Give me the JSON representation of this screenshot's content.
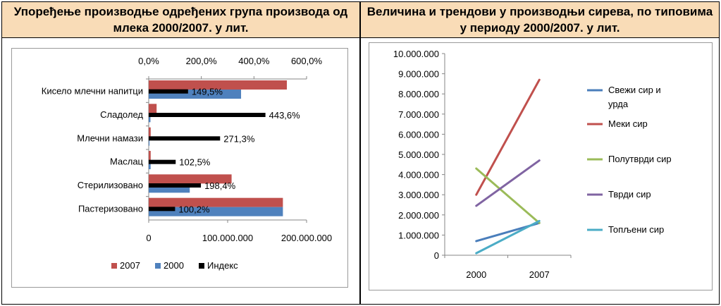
{
  "headers": {
    "left": "Упоређење производње одређених група производа од млека 2000/2007. у лит.",
    "right": "Величина и трендови у производњи сирева, по типовима у периоду 2000/2007. у лит."
  },
  "chart_data": [
    {
      "type": "bar",
      "orientation": "horizontal",
      "categories": [
        "Кисело млечни напитци",
        "Сладолед",
        "Млечни намази",
        "Маслац",
        "Стерилизовано",
        "Пастеризовано"
      ],
      "series": [
        {
          "name": "2007",
          "color": "#c0504d",
          "values": [
            175000000,
            10000000,
            2500000,
            2500000,
            105000000,
            170000000
          ],
          "axis": "bottom"
        },
        {
          "name": "2000",
          "color": "#4f81bd",
          "values": [
            117000000,
            2200000,
            1000000,
            2400000,
            52000000,
            170000000
          ],
          "axis": "bottom"
        },
        {
          "name": "Индекс",
          "color": "#000000",
          "values": [
            149.5,
            443.6,
            271.3,
            102.5,
            198.4,
            100.2
          ],
          "axis": "top"
        }
      ],
      "data_labels": [
        "149,5%",
        "443,6%",
        "271,3%",
        "102,5%",
        "198,4%",
        "100,2%"
      ],
      "top_axis": {
        "ticks": [
          "0,0%",
          "200,0%",
          "400,0%",
          "600,0%"
        ],
        "range": [
          0,
          600
        ]
      },
      "bottom_axis": {
        "ticks": [
          "0",
          "100.000.000",
          "200.000.000"
        ],
        "range": [
          0,
          200000000
        ]
      },
      "legend": [
        "2007",
        "2000",
        "Индекс"
      ],
      "legend_position": "bottom",
      "grid": false
    },
    {
      "type": "line",
      "x": [
        "2000",
        "2007"
      ],
      "series": [
        {
          "name": "Свежи сир и урда",
          "color": "#4a7ebb",
          "values": [
            700000,
            1600000
          ]
        },
        {
          "name": "Меки сир",
          "color": "#c0504d",
          "values": [
            3000000,
            8700000
          ]
        },
        {
          "name": "Полутврди сир",
          "color": "#9bbb59",
          "values": [
            4300000,
            1600000
          ]
        },
        {
          "name": "Тврди сир",
          "color": "#8064a2",
          "values": [
            2450000,
            4700000
          ]
        },
        {
          "name": "Топљени сир",
          "color": "#4bacc6",
          "values": [
            100000,
            1700000
          ]
        }
      ],
      "y_ticks": [
        "0",
        "1.000.000",
        "2.000.000",
        "3.000.000",
        "4.000.000",
        "5.000.000",
        "6.000.000",
        "7.000.000",
        "8.000.000",
        "9.000.000",
        "10.000.000"
      ],
      "ylim": [
        0,
        10000000
      ],
      "legend_position": "right",
      "grid": false
    }
  ]
}
